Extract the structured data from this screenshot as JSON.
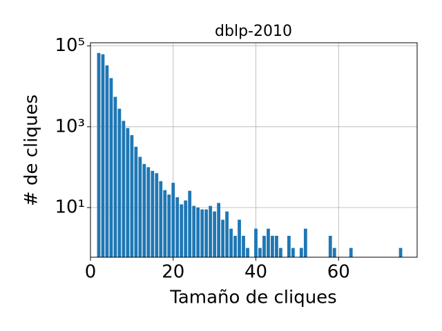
{
  "chart_data": {
    "type": "bar",
    "title": "dblp-2010",
    "xlabel": "Tamaño de cliques",
    "ylabel": "# de cliques",
    "x": [
      2,
      3,
      4,
      5,
      6,
      7,
      8,
      9,
      10,
      11,
      12,
      13,
      14,
      15,
      16,
      17,
      18,
      19,
      20,
      21,
      22,
      23,
      24,
      25,
      26,
      27,
      28,
      29,
      30,
      31,
      32,
      33,
      34,
      35,
      36,
      37,
      38,
      40,
      41,
      42,
      43,
      44,
      45,
      46,
      48,
      49,
      51,
      52,
      58,
      59,
      63,
      75
    ],
    "values": [
      67000,
      62000,
      33000,
      16000,
      5500,
      2800,
      1400,
      930,
      620,
      320,
      180,
      120,
      100,
      81,
      71,
      45,
      27,
      21,
      41,
      18,
      12,
      15,
      26,
      11,
      10,
      9,
      9,
      11,
      8,
      13,
      5,
      8,
      3,
      2,
      5,
      2,
      1,
      3,
      1,
      2,
      3,
      2,
      2,
      1,
      2,
      1,
      1,
      3,
      2,
      1,
      1,
      1
    ],
    "color": "#1f77b4",
    "xlim": [
      0,
      79
    ],
    "xticks": [
      0,
      20,
      40,
      60
    ],
    "ylim": [
      0.59,
      120000
    ],
    "log_y": true,
    "yticks": [
      {
        "value": 10,
        "label": "10¹"
      },
      {
        "value": 1000,
        "label": "10³"
      },
      {
        "value": 100000,
        "label": "10⁵"
      }
    ],
    "grid": true
  }
}
